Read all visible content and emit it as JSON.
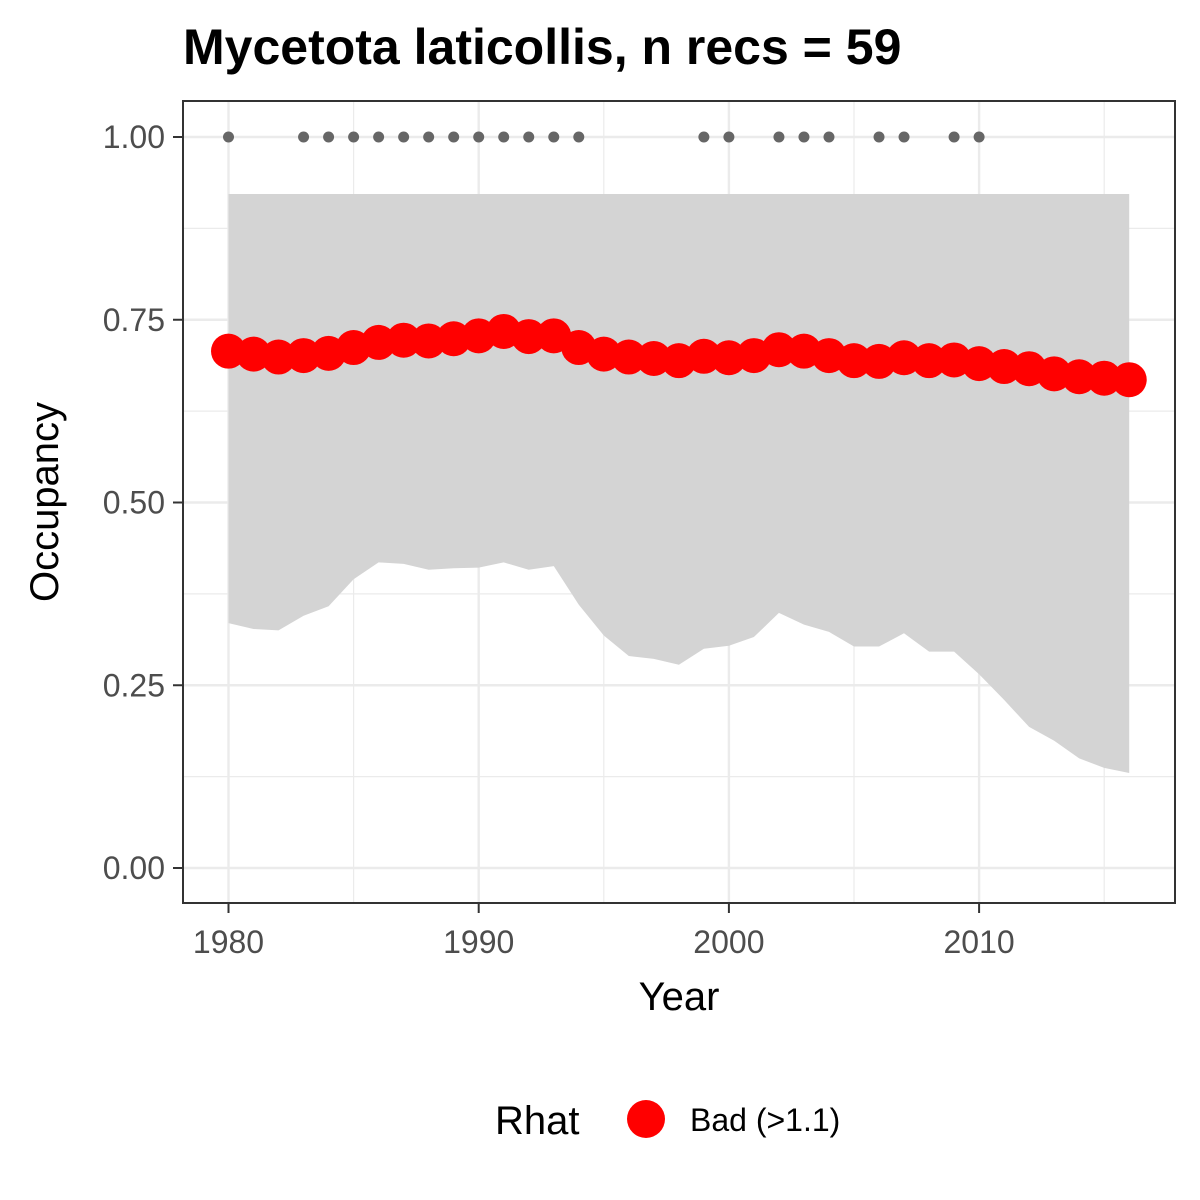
{
  "chart_data": {
    "type": "line",
    "title": "Mycetota laticollis, n recs = 59",
    "xlabel": "Year",
    "ylabel": "Occupancy",
    "xlim": [
      1978.2,
      2017.8
    ],
    "ylim": [
      -0.05,
      1.05
    ],
    "x_ticks": [
      1980,
      1990,
      2000,
      2010
    ],
    "x_tick_labels": [
      "1980",
      "1990",
      "2000",
      "2010"
    ],
    "x_minor_ticks": [
      1985,
      1995,
      2005,
      2015
    ],
    "y_ticks": [
      0,
      0.25,
      0.5,
      0.75,
      1
    ],
    "y_tick_labels": [
      "0.00",
      "0.25",
      "0.50",
      "0.75",
      "1.00"
    ],
    "y_minor_ticks": [
      0.125,
      0.375,
      0.625,
      0.875
    ],
    "grid": true,
    "years": [
      1980,
      1981,
      1982,
      1983,
      1984,
      1985,
      1986,
      1987,
      1988,
      1989,
      1990,
      1991,
      1992,
      1993,
      1994,
      1995,
      1996,
      1997,
      1998,
      1999,
      2000,
      2001,
      2002,
      2003,
      2004,
      2005,
      2006,
      2007,
      2008,
      2009,
      2010,
      2011,
      2012,
      2013,
      2014,
      2015,
      2016
    ],
    "series": [
      {
        "name": "Occupancy",
        "values": [
          0.707,
          0.703,
          0.699,
          0.701,
          0.704,
          0.712,
          0.719,
          0.722,
          0.721,
          0.724,
          0.728,
          0.734,
          0.727,
          0.728,
          0.712,
          0.703,
          0.699,
          0.697,
          0.694,
          0.7,
          0.698,
          0.701,
          0.709,
          0.707,
          0.701,
          0.694,
          0.693,
          0.698,
          0.694,
          0.695,
          0.69,
          0.686,
          0.683,
          0.676,
          0.672,
          0.67,
          0.668
        ],
        "color": "#ff0000",
        "rhat": "Bad (>1.1)"
      }
    ],
    "ribbon": {
      "upper": [
        0.922,
        0.922,
        0.922,
        0.922,
        0.922,
        0.922,
        0.922,
        0.922,
        0.922,
        0.922,
        0.922,
        0.922,
        0.922,
        0.922,
        0.922,
        0.922,
        0.922,
        0.922,
        0.922,
        0.922,
        0.922,
        0.922,
        0.922,
        0.922,
        0.922,
        0.922,
        0.922,
        0.922,
        0.922,
        0.922,
        0.922,
        0.922,
        0.922,
        0.922,
        0.922,
        0.922,
        0.922
      ],
      "lower": [
        0.335,
        0.327,
        0.325,
        0.345,
        0.358,
        0.395,
        0.418,
        0.416,
        0.408,
        0.41,
        0.411,
        0.418,
        0.408,
        0.413,
        0.36,
        0.318,
        0.29,
        0.286,
        0.278,
        0.3,
        0.304,
        0.316,
        0.349,
        0.333,
        0.323,
        0.303,
        0.303,
        0.321,
        0.296,
        0.296,
        0.265,
        0.23,
        0.193,
        0.174,
        0.15,
        0.137,
        0.13
      ],
      "color": "#d4d4d4"
    },
    "record_years": [
      1980,
      1983,
      1984,
      1985,
      1986,
      1987,
      1988,
      1989,
      1990,
      1991,
      1992,
      1993,
      1994,
      1999,
      2000,
      2002,
      2003,
      2004,
      2006,
      2007,
      2009,
      2010
    ],
    "record_value": 1.0,
    "record_color": "#666666",
    "legend": {
      "title": "Rhat",
      "entries": [
        {
          "label": "Bad (>1.1)",
          "color": "#ff0000"
        }
      ],
      "position": "bottom"
    }
  }
}
